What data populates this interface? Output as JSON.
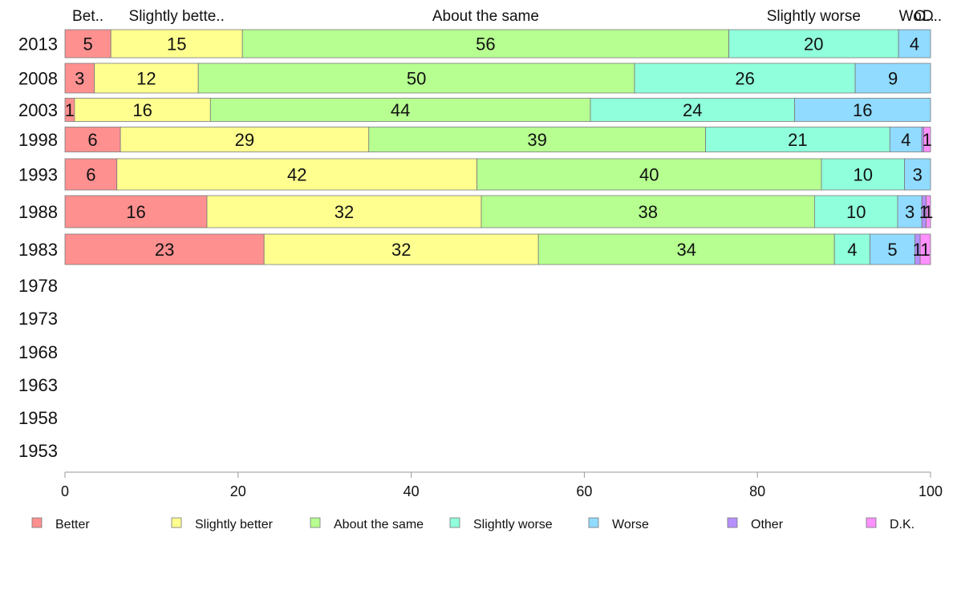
{
  "chart_data": {
    "type": "bar",
    "orientation": "horizontal",
    "stacked": true,
    "title": "",
    "xlabel": "",
    "ylabel": "",
    "xlim": [
      0,
      100
    ],
    "x_ticks": [
      "0",
      "20",
      "40",
      "60",
      "80",
      "100"
    ],
    "grid": false,
    "legend_position": "bottom",
    "categories": [
      "2013",
      "2008",
      "2003",
      "1998",
      "1993",
      "1988",
      "1983",
      "1978",
      "1973",
      "1968",
      "1963",
      "1958",
      "1953"
    ],
    "top_labels": [
      "Bet..",
      "Slightly bette..",
      "About the same",
      "Slightly worse",
      "Wo..",
      "O..",
      "D.."
    ],
    "series": [
      {
        "name": "Better",
        "color": "#ff9090",
        "values": [
          5.3,
          3.4,
          1.1,
          6.4,
          6.0,
          16.4,
          23.0,
          null,
          null,
          null,
          null,
          null,
          null
        ],
        "labels": [
          "5",
          "3",
          "1",
          "6",
          "6",
          "16",
          "23",
          "",
          "",
          "",
          "",
          "",
          ""
        ]
      },
      {
        "name": "Slightly better",
        "color": "#ffff90",
        "values": [
          15.2,
          12.0,
          15.7,
          28.7,
          41.6,
          31.7,
          31.7,
          null,
          null,
          null,
          null,
          null,
          null
        ],
        "labels": [
          "15",
          "12",
          "16",
          "29",
          "42",
          "32",
          "32",
          "",
          "",
          "",
          "",
          "",
          ""
        ]
      },
      {
        "name": "About the same",
        "color": "#b6ff90",
        "values": [
          56.2,
          50.4,
          43.9,
          38.9,
          39.8,
          38.5,
          34.2,
          null,
          null,
          null,
          null,
          null,
          null
        ],
        "labels": [
          "56",
          "50",
          "44",
          "39",
          "40",
          "38",
          "34",
          "",
          "",
          "",
          "",
          "",
          ""
        ]
      },
      {
        "name": "Slightly worse",
        "color": "#90ffdb",
        "values": [
          19.6,
          25.5,
          23.6,
          21.3,
          9.6,
          9.6,
          4.1,
          null,
          null,
          null,
          null,
          null,
          null
        ],
        "labels": [
          "20",
          "26",
          "24",
          "21",
          "10",
          "10",
          "4",
          "",
          "",
          "",
          "",
          "",
          ""
        ]
      },
      {
        "name": "Worse",
        "color": "#90dbff",
        "values": [
          3.7,
          8.7,
          15.7,
          3.7,
          3.0,
          2.8,
          5.2,
          null,
          null,
          null,
          null,
          null,
          null
        ],
        "labels": [
          "4",
          "9",
          "16",
          "4",
          "3",
          "3",
          "5",
          "",
          "",
          "",
          "",
          "",
          ""
        ]
      },
      {
        "name": "Other",
        "color": "#b690ff",
        "values": [
          0,
          0,
          0,
          0.2,
          0,
          0.5,
          0.6,
          null,
          null,
          null,
          null,
          null,
          null
        ],
        "labels": [
          "",
          "",
          "",
          "",
          "",
          "1",
          "1",
          "",
          "",
          "",
          "",
          "",
          ""
        ]
      },
      {
        "name": "D.K.",
        "color": "#ff90ff",
        "values": [
          0,
          0,
          0,
          0.8,
          0,
          0.5,
          1.2,
          null,
          null,
          null,
          null,
          null,
          null
        ],
        "labels": [
          "",
          "",
          "",
          "1",
          "",
          "1",
          "1",
          "",
          "",
          "",
          "",
          "",
          ""
        ]
      }
    ]
  }
}
